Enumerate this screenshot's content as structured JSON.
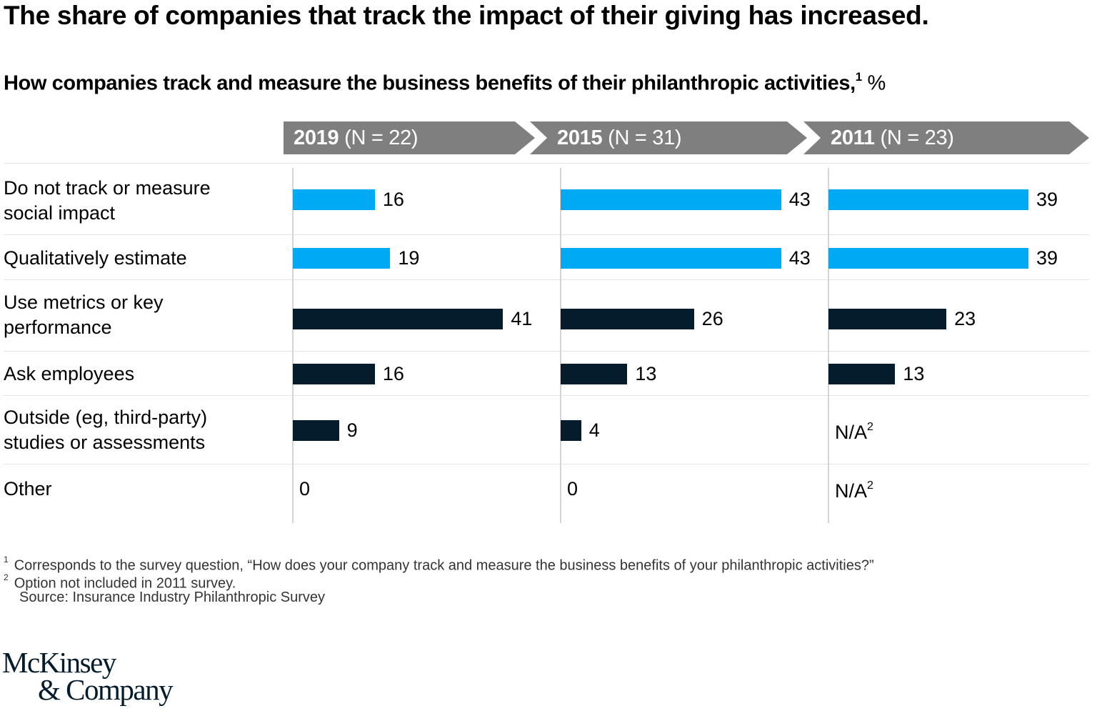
{
  "title": "The share of companies that track the impact of their giving has increased.",
  "subtitle": "How companies track and measure the business benefits of their philanthropic activities,",
  "subtitle_footnote": "1",
  "subtitle_unit": "%",
  "colors": {
    "light_blue": "#00a9f4",
    "dark_navy": "#051c2c",
    "header_gray": "#7f7f7f"
  },
  "chart_data": {
    "type": "bar",
    "orientation": "horizontal",
    "title": "The share of companies that track the impact of their giving has increased.",
    "subtitle": "How companies track and measure the business benefits of their philanthropic activities, %",
    "unit": "%",
    "categories": [
      "Do not track or measure social impact",
      "Qualitatively estimate",
      "Use metrics or key performance",
      "Ask employees",
      "Outside (eg, third-party) studies or assessments",
      "Other"
    ],
    "category_colors": [
      "light_blue",
      "light_blue",
      "dark_navy",
      "dark_navy",
      "dark_navy",
      "dark_navy"
    ],
    "series": [
      {
        "name": "2019",
        "n": "N = 22",
        "values": [
          16,
          19,
          41,
          16,
          9,
          0
        ]
      },
      {
        "name": "2015",
        "n": "N = 31",
        "values": [
          43,
          43,
          26,
          13,
          4,
          0
        ]
      },
      {
        "name": "2011",
        "n": "N = 23",
        "values": [
          39,
          39,
          23,
          13,
          null,
          null
        ]
      }
    ],
    "na_label": "N/A",
    "na_footnote": "2",
    "xlim": [
      0,
      50
    ],
    "grid": false,
    "legend": "none"
  },
  "rows": [
    {
      "label_lines": [
        "Do not track or measure",
        "social impact"
      ]
    },
    {
      "label_lines": [
        "Qualitatively estimate"
      ]
    },
    {
      "label_lines": [
        "Use metrics or key",
        "performance"
      ]
    },
    {
      "label_lines": [
        "Ask employees"
      ]
    },
    {
      "label_lines": [
        "Outside (eg, third-party)",
        "studies or assessments"
      ]
    },
    {
      "label_lines": [
        "Other"
      ]
    }
  ],
  "headers": [
    {
      "year": "2019",
      "n": "(N = 22)"
    },
    {
      "year": "2015",
      "n": "(N = 31)"
    },
    {
      "year": "2011",
      "n": "(N = 23)"
    }
  ],
  "footnotes": [
    {
      "mark": "1",
      "text": "Corresponds to the survey question, “How does your company track and measure the business benefits of your philanthropic activities?”"
    },
    {
      "mark": "2",
      "text": "Option not included in 2011 survey."
    }
  ],
  "source": "Source: Insurance Industry Philanthropic Survey",
  "logo": {
    "line1": "McKinsey",
    "line2": "& Company"
  }
}
